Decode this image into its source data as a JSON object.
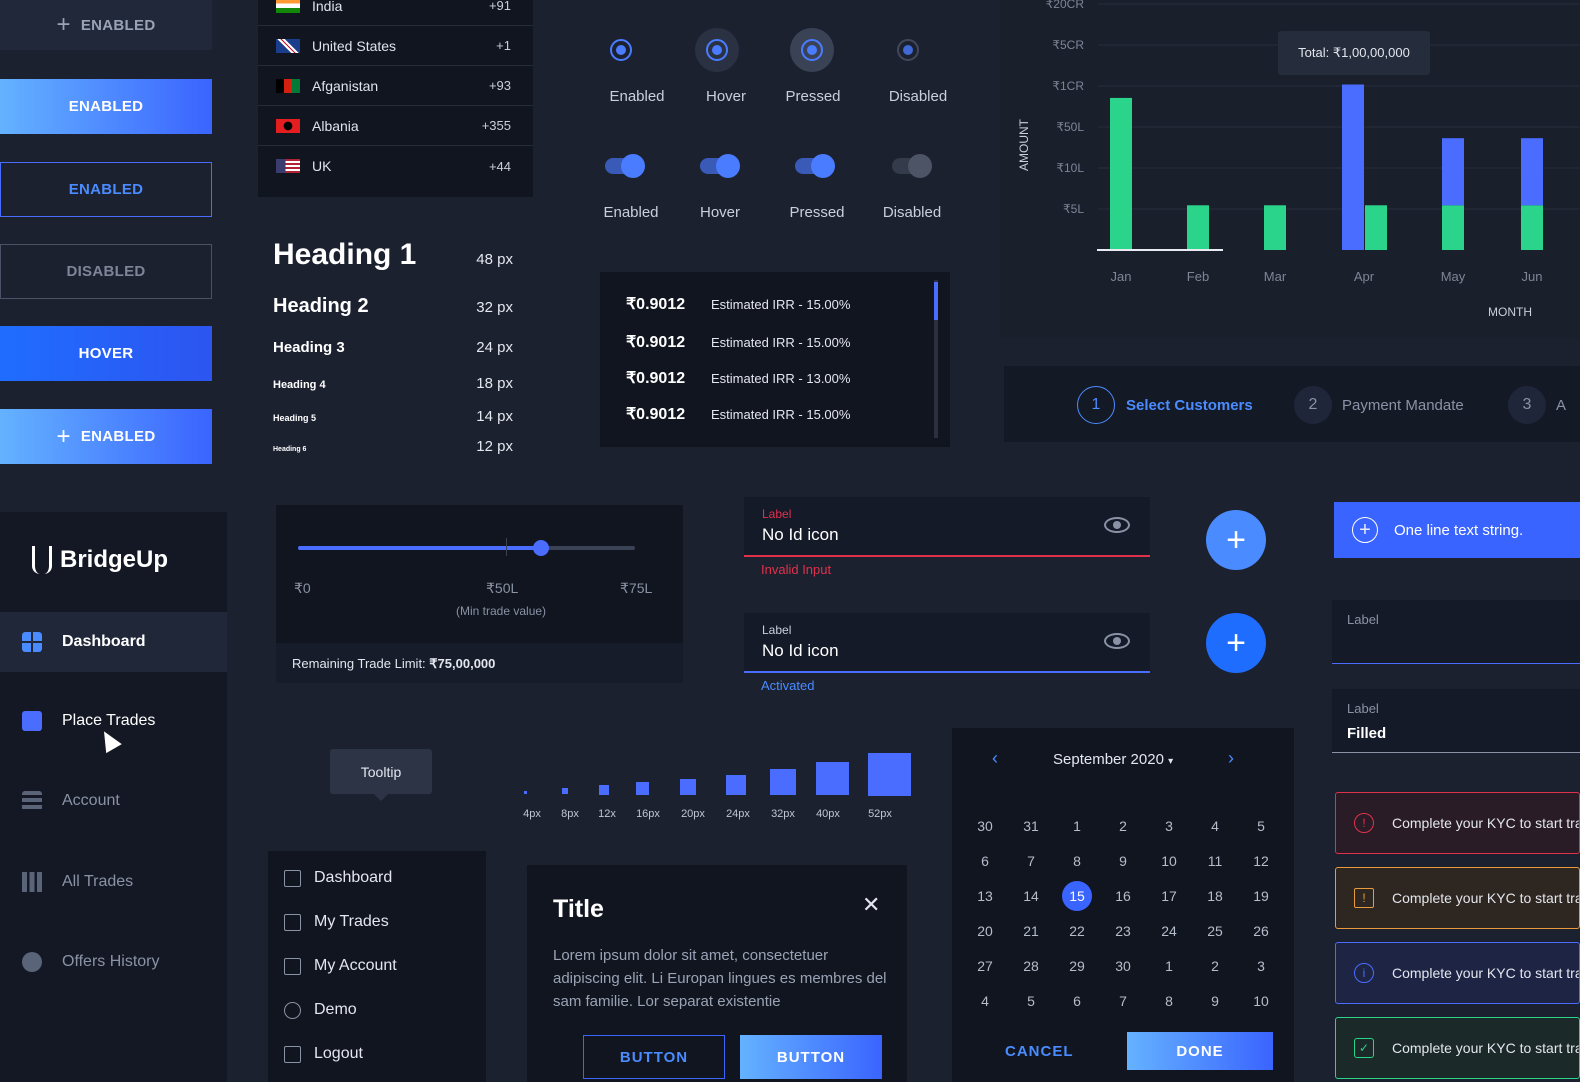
{
  "buttons": {
    "enabled_top": "ENABLED",
    "enabled_filled": "ENABLED",
    "enabled_outline": "ENABLED",
    "disabled": "DISABLED",
    "hover": "HOVER",
    "enabled_icon": "ENABLED",
    "plus": "+"
  },
  "countries": [
    {
      "name": "India",
      "code": "+91"
    },
    {
      "name": "United States",
      "code": "+1"
    },
    {
      "name": "Afganistan",
      "code": "+93"
    },
    {
      "name": "Albania",
      "code": "+355"
    },
    {
      "name": "UK",
      "code": "+44"
    }
  ],
  "typography": [
    {
      "label": "Heading 1",
      "size": "48 px"
    },
    {
      "label": "Heading 2",
      "size": "32 px"
    },
    {
      "label": "Heading 3",
      "size": "24 px"
    },
    {
      "label": "Heading 4",
      "size": "18 px"
    },
    {
      "label": "Heading 5",
      "size": "14 px"
    },
    {
      "label": "Heading 6",
      "size": "12 px"
    }
  ],
  "radio_states": [
    "Enabled",
    "Hover",
    "Pressed",
    "Disabled"
  ],
  "toggle_states": [
    "Enabled",
    "Hover",
    "Pressed",
    "Disabled"
  ],
  "irr_rows": [
    {
      "value": "₹0.9012",
      "text": "Estimated IRR - 15.00%"
    },
    {
      "value": "₹0.9012",
      "text": "Estimated IRR - 15.00%"
    },
    {
      "value": "₹0.9012",
      "text": "Estimated IRR - 13.00%"
    },
    {
      "value": "₹0.9012",
      "text": "Estimated IRR - 15.00%"
    }
  ],
  "chart_data": {
    "type": "bar",
    "categories": [
      "Jan",
      "Feb",
      "Mar",
      "Apr",
      "May",
      "Jun"
    ],
    "ylabel": "AMOUNT",
    "xlabel": "MONTH",
    "ytick_labels": [
      "₹20CR",
      "₹5CR",
      "₹1CR",
      "₹50L",
      "₹10L",
      "₹5L"
    ],
    "tooltip": "Total: ₹1,00,00,000",
    "series": [
      {
        "color": "#4a6dff",
        "values": [
          0,
          0,
          0,
          3.7,
          2.5,
          2.5
        ]
      },
      {
        "color": "#2ad48a",
        "values": [
          3.4,
          1.0,
          1.0,
          1.0,
          1.0,
          1.0
        ]
      }
    ],
    "ylim": [
      0,
      5.5
    ]
  },
  "stepper": [
    {
      "num": "1",
      "label": "Select Customers"
    },
    {
      "num": "2",
      "label": "Payment Mandate"
    },
    {
      "num": "3",
      "label": "A"
    }
  ],
  "brand": {
    "name": "BridgeUp"
  },
  "sidebar": [
    {
      "label": "Dashboard",
      "icon": "grid-icon"
    },
    {
      "label": "Place Trades",
      "icon": "document-icon"
    },
    {
      "label": "Account",
      "icon": "stack-icon"
    },
    {
      "label": "All Trades",
      "icon": "bar-chart-icon"
    },
    {
      "label": "Offers History",
      "icon": "clock-icon"
    }
  ],
  "slider": {
    "min": "₹0",
    "mid": "₹50L",
    "max": "₹75L",
    "caption": "(Min trade value)",
    "fraction": 0.72,
    "limit_label": "Remaining Trade Limit: ",
    "limit_value": "₹75,00,000"
  },
  "fields": {
    "error": {
      "label": "Label",
      "value": "No Id icon",
      "helper": "Invalid Input"
    },
    "active": {
      "label": "Label",
      "value": "No Id icon",
      "helper": "Activated"
    },
    "empty": {
      "label": "Label"
    },
    "filled": {
      "label": "Label",
      "value": "Filled"
    }
  },
  "banner": {
    "text": "One line text string."
  },
  "tooltip": {
    "text": "Tooltip"
  },
  "spacing": [
    "4px",
    "8px",
    "12x",
    "16px",
    "20px",
    "24px",
    "32px",
    "40px",
    "52px"
  ],
  "menu": [
    {
      "label": "Dashboard",
      "icon": "grid-icon"
    },
    {
      "label": "My Trades",
      "icon": "document-icon"
    },
    {
      "label": "My Account",
      "icon": "card-icon"
    },
    {
      "label": "Demo",
      "icon": "hexagon-icon"
    },
    {
      "label": "Logout",
      "icon": "logout-icon"
    }
  ],
  "dialog": {
    "title": "Title",
    "body": "Lorem ipsum dolor sit amet, consectetuer adipiscing elit. Li Europan lingues es membres del sam familie. Lor separat existentie",
    "btn1": "BUTTON",
    "btn2": "BUTTON"
  },
  "calendar": {
    "month": "September 2020",
    "days": [
      "30",
      "31",
      "1",
      "2",
      "3",
      "4",
      "5",
      "6",
      "7",
      "8",
      "9",
      "10",
      "11",
      "12",
      "13",
      "14",
      "15",
      "16",
      "17",
      "18",
      "19",
      "20",
      "21",
      "22",
      "23",
      "24",
      "25",
      "26",
      "27",
      "28",
      "29",
      "30",
      "1",
      "2",
      "3",
      "4",
      "5",
      "6",
      "7",
      "8",
      "9",
      "10"
    ],
    "selected_index": 16,
    "cancel": "CANCEL",
    "done": "DONE"
  },
  "alerts": [
    {
      "text": "Complete your KYC to start trading",
      "color": "#e0314b",
      "bg": "#2a1c26",
      "icon": "!"
    },
    {
      "text": "Complete your KYC to start trading",
      "color": "#e89a3c",
      "bg": "#2e2620",
      "icon": "!"
    },
    {
      "text": "Complete your KYC to start trading",
      "color": "#4a6dff",
      "bg": "#1e2444",
      "icon": "i"
    },
    {
      "text": "Complete your KYC to start trading",
      "color": "#2ad48a",
      "bg": "#1b2a28",
      "icon": "✓"
    }
  ]
}
